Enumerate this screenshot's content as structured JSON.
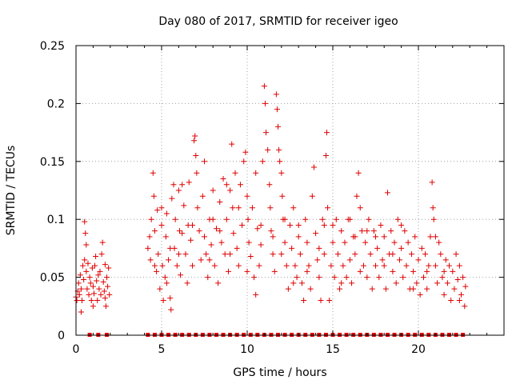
{
  "chart_data": {
    "type": "scatter",
    "title": "Day 080 of 2017, SRMTID for receiver igeo",
    "xlabel": "GPS time / hours",
    "ylabel": "SRMTID / TECUs",
    "xlim": [
      0,
      25
    ],
    "ylim": [
      0,
      0.25
    ],
    "xticks": [
      0,
      5,
      10,
      15,
      20
    ],
    "xtick_labels": [
      "0",
      "5",
      "10",
      "15",
      "20"
    ],
    "yticks": [
      0,
      0.05,
      0.1,
      0.15,
      0.2,
      0.25
    ],
    "ytick_labels": [
      "0",
      "0.05",
      "0.1",
      "0.15",
      "0.2",
      "0.25"
    ],
    "grid": true,
    "marker": "plus",
    "color": "#e00000",
    "series": [
      {
        "name": "SRMTID",
        "points": [
          [
            0.0,
            0.033
          ],
          [
            0.05,
            0.03
          ],
          [
            0.1,
            0.038
          ],
          [
            0.15,
            0.045
          ],
          [
            0.2,
            0.035
          ],
          [
            0.25,
            0.052
          ],
          [
            0.3,
            0.04
          ],
          [
            0.35,
            0.03
          ],
          [
            0.4,
            0.06
          ],
          [
            0.45,
            0.048
          ],
          [
            0.5,
            0.065
          ],
          [
            0.5,
            0.098
          ],
          [
            0.55,
            0.088
          ],
          [
            0.6,
            0.078
          ],
          [
            0.6,
            0.055
          ],
          [
            0.65,
            0.04
          ],
          [
            0.7,
            0.062
          ],
          [
            0.75,
            0.035
          ],
          [
            0.8,
            0.05
          ],
          [
            0.85,
            0.045
          ],
          [
            0.9,
            0.03
          ],
          [
            0.95,
            0.058
          ],
          [
            1.0,
            0.042
          ],
          [
            1.05,
            0.036
          ],
          [
            1.1,
            0.06
          ],
          [
            1.15,
            0.068
          ],
          [
            1.2,
            0.047
          ],
          [
            1.25,
            0.03
          ],
          [
            1.3,
            0.052
          ],
          [
            1.35,
            0.04
          ],
          [
            1.4,
            0.055
          ],
          [
            1.45,
            0.035
          ],
          [
            1.5,
            0.07
          ],
          [
            1.55,
            0.08
          ],
          [
            1.6,
            0.046
          ],
          [
            1.65,
            0.038
          ],
          [
            1.7,
            0.061
          ],
          [
            1.75,
            0.025
          ],
          [
            1.8,
            0.05
          ],
          [
            1.85,
            0.042
          ],
          [
            1.9,
            0.058
          ],
          [
            1.95,
            0.035
          ],
          [
            0.3,
            0.02
          ],
          [
            1.0,
            0.025
          ],
          [
            1.7,
            0.032
          ],
          [
            4.2,
            0.075
          ],
          [
            4.3,
            0.085
          ],
          [
            4.35,
            0.065
          ],
          [
            4.4,
            0.1
          ],
          [
            4.5,
            0.14
          ],
          [
            4.55,
            0.12
          ],
          [
            4.6,
            0.09
          ],
          [
            4.7,
            0.055
          ],
          [
            4.75,
            0.108
          ],
          [
            4.8,
            0.07
          ],
          [
            4.9,
            0.04
          ],
          [
            5.0,
            0.095
          ],
          [
            5.05,
            0.06
          ],
          [
            5.1,
            0.03
          ],
          [
            5.2,
            0.05
          ],
          [
            5.25,
            0.085
          ],
          [
            5.3,
            0.045
          ],
          [
            5.4,
            0.065
          ],
          [
            5.5,
            0.032
          ],
          [
            5.55,
            0.022
          ],
          [
            5.6,
            0.118
          ],
          [
            5.7,
            0.13
          ],
          [
            5.75,
            0.075
          ],
          [
            5.8,
            0.1
          ],
          [
            5.9,
            0.06
          ],
          [
            6.0,
            0.125
          ],
          [
            6.05,
            0.09
          ],
          [
            6.1,
            0.052
          ],
          [
            6.2,
            0.088
          ],
          [
            6.3,
            0.112
          ],
          [
            6.4,
            0.07
          ],
          [
            6.5,
            0.045
          ],
          [
            6.55,
            0.095
          ],
          [
            6.6,
            0.132
          ],
          [
            6.7,
            0.082
          ],
          [
            6.8,
            0.06
          ],
          [
            6.9,
            0.168
          ],
          [
            6.95,
            0.172
          ],
          [
            7.0,
            0.155
          ],
          [
            7.05,
            0.14
          ],
          [
            7.1,
            0.11
          ],
          [
            7.2,
            0.09
          ],
          [
            7.3,
            0.065
          ],
          [
            7.4,
            0.12
          ],
          [
            7.5,
            0.085
          ],
          [
            7.6,
            0.07
          ],
          [
            7.7,
            0.05
          ],
          [
            7.8,
            0.1
          ],
          [
            7.9,
            0.078
          ],
          [
            8.0,
            0.125
          ],
          [
            8.1,
            0.06
          ],
          [
            8.2,
            0.092
          ],
          [
            8.3,
            0.045
          ],
          [
            8.4,
            0.115
          ],
          [
            8.5,
            0.08
          ],
          [
            8.6,
            0.135
          ],
          [
            8.7,
            0.07
          ],
          [
            8.8,
            0.1
          ],
          [
            8.9,
            0.055
          ],
          [
            9.0,
            0.125
          ],
          [
            9.1,
            0.165
          ],
          [
            9.15,
            0.11
          ],
          [
            9.2,
            0.088
          ],
          [
            9.3,
            0.14
          ],
          [
            9.4,
            0.075
          ],
          [
            9.5,
            0.06
          ],
          [
            9.6,
            0.13
          ],
          [
            9.7,
            0.095
          ],
          [
            9.8,
            0.15
          ],
          [
            9.9,
            0.158
          ],
          [
            10.0,
            0.12
          ],
          [
            10.05,
            0.1
          ],
          [
            10.1,
            0.08
          ],
          [
            10.2,
            0.068
          ],
          [
            10.3,
            0.11
          ],
          [
            10.4,
            0.05
          ],
          [
            10.5,
            0.035
          ],
          [
            10.6,
            0.092
          ],
          [
            10.7,
            0.06
          ],
          [
            10.8,
            0.078
          ],
          [
            10.9,
            0.15
          ],
          [
            11.0,
            0.215
          ],
          [
            11.05,
            0.2
          ],
          [
            11.1,
            0.175
          ],
          [
            11.2,
            0.16
          ],
          [
            11.3,
            0.13
          ],
          [
            11.35,
            0.11
          ],
          [
            11.4,
            0.09
          ],
          [
            11.5,
            0.07
          ],
          [
            11.6,
            0.055
          ],
          [
            11.7,
            0.208
          ],
          [
            11.75,
            0.195
          ],
          [
            11.8,
            0.18
          ],
          [
            11.85,
            0.16
          ],
          [
            11.9,
            0.15
          ],
          [
            12.0,
            0.14
          ],
          [
            12.05,
            0.12
          ],
          [
            12.1,
            0.1
          ],
          [
            12.2,
            0.08
          ],
          [
            12.3,
            0.06
          ],
          [
            12.4,
            0.04
          ],
          [
            12.5,
            0.095
          ],
          [
            12.6,
            0.075
          ],
          [
            12.7,
            0.11
          ],
          [
            12.8,
            0.06
          ],
          [
            12.9,
            0.05
          ],
          [
            13.0,
            0.085
          ],
          [
            13.1,
            0.07
          ],
          [
            13.2,
            0.045
          ],
          [
            13.3,
            0.03
          ],
          [
            13.4,
            0.1
          ],
          [
            13.5,
            0.08
          ],
          [
            13.6,
            0.06
          ],
          [
            13.7,
            0.04
          ],
          [
            13.8,
            0.12
          ],
          [
            13.9,
            0.145
          ],
          [
            14.0,
            0.088
          ],
          [
            14.1,
            0.065
          ],
          [
            14.2,
            0.05
          ],
          [
            14.3,
            0.03
          ],
          [
            14.4,
            0.1
          ],
          [
            14.5,
            0.07
          ],
          [
            14.6,
            0.155
          ],
          [
            14.65,
            0.175
          ],
          [
            14.7,
            0.11
          ],
          [
            14.8,
            0.03
          ],
          [
            14.9,
            0.06
          ],
          [
            15.0,
            0.08
          ],
          [
            15.1,
            0.05
          ],
          [
            15.2,
            0.1
          ],
          [
            15.3,
            0.07
          ],
          [
            15.4,
            0.04
          ],
          [
            15.5,
            0.09
          ],
          [
            15.6,
            0.06
          ],
          [
            15.7,
            0.08
          ],
          [
            15.8,
            0.05
          ],
          [
            15.9,
            0.1
          ],
          [
            16.0,
            0.065
          ],
          [
            16.1,
            0.045
          ],
          [
            16.2,
            0.085
          ],
          [
            16.3,
            0.07
          ],
          [
            16.4,
            0.12
          ],
          [
            16.5,
            0.14
          ],
          [
            16.6,
            0.11
          ],
          [
            16.7,
            0.09
          ],
          [
            16.8,
            0.06
          ],
          [
            16.9,
            0.08
          ],
          [
            17.0,
            0.05
          ],
          [
            17.1,
            0.1
          ],
          [
            17.2,
            0.07
          ],
          [
            17.3,
            0.04
          ],
          [
            17.4,
            0.09
          ],
          [
            17.5,
            0.06
          ],
          [
            17.6,
            0.075
          ],
          [
            17.7,
            0.05
          ],
          [
            17.8,
            0.095
          ],
          [
            17.9,
            0.065
          ],
          [
            18.0,
            0.085
          ],
          [
            18.1,
            0.04
          ],
          [
            18.2,
            0.123
          ],
          [
            18.3,
            0.07
          ],
          [
            18.4,
            0.09
          ],
          [
            18.5,
            0.055
          ],
          [
            18.6,
            0.08
          ],
          [
            18.7,
            0.045
          ],
          [
            18.8,
            0.1
          ],
          [
            18.9,
            0.065
          ],
          [
            19.0,
            0.075
          ],
          [
            19.1,
            0.05
          ],
          [
            19.2,
            0.09
          ],
          [
            19.3,
            0.06
          ],
          [
            19.4,
            0.08
          ],
          [
            19.5,
            0.04
          ],
          [
            19.6,
            0.07
          ],
          [
            19.7,
            0.055
          ],
          [
            19.8,
            0.085
          ],
          [
            19.9,
            0.045
          ],
          [
            20.0,
            0.065
          ],
          [
            20.1,
            0.035
          ],
          [
            20.2,
            0.075
          ],
          [
            20.3,
            0.05
          ],
          [
            20.4,
            0.07
          ],
          [
            20.5,
            0.04
          ],
          [
            20.6,
            0.06
          ],
          [
            20.7,
            0.085
          ],
          [
            20.8,
            0.132
          ],
          [
            20.85,
            0.11
          ],
          [
            20.9,
            0.1
          ],
          [
            21.0,
            0.06
          ],
          [
            21.1,
            0.045
          ],
          [
            21.2,
            0.08
          ],
          [
            21.3,
            0.07
          ],
          [
            21.4,
            0.05
          ],
          [
            21.5,
            0.035
          ],
          [
            21.6,
            0.065
          ],
          [
            21.7,
            0.045
          ],
          [
            21.8,
            0.06
          ],
          [
            21.9,
            0.03
          ],
          [
            22.0,
            0.055
          ],
          [
            22.1,
            0.04
          ],
          [
            22.2,
            0.07
          ],
          [
            22.3,
            0.048
          ],
          [
            22.4,
            0.06
          ],
          [
            22.5,
            0.035
          ],
          [
            22.6,
            0.05
          ],
          [
            22.7,
            0.025
          ],
          [
            22.75,
            0.042
          ],
          [
            5.0,
            0.11
          ],
          [
            5.3,
            0.105
          ],
          [
            6.2,
            0.13
          ],
          [
            7.5,
            0.15
          ],
          [
            8.0,
            0.1
          ],
          [
            8.8,
            0.13
          ],
          [
            9.5,
            0.11
          ],
          [
            10.5,
            0.14
          ],
          [
            12.2,
            0.1
          ],
          [
            13.0,
            0.095
          ],
          [
            15.0,
            0.095
          ],
          [
            16.0,
            0.1
          ],
          [
            17.0,
            0.09
          ],
          [
            19.0,
            0.095
          ],
          [
            21.0,
            0.085
          ],
          [
            5.5,
            0.075
          ],
          [
            6.8,
            0.095
          ],
          [
            7.8,
            0.065
          ],
          [
            9.0,
            0.07
          ],
          [
            10.0,
            0.055
          ],
          [
            11.5,
            0.085
          ],
          [
            12.7,
            0.045
          ],
          [
            13.5,
            0.055
          ],
          [
            14.2,
            0.075
          ],
          [
            15.5,
            0.045
          ],
          [
            16.6,
            0.055
          ],
          [
            17.5,
            0.085
          ],
          [
            18.5,
            0.07
          ],
          [
            19.7,
            0.04
          ],
          [
            20.5,
            0.055
          ],
          [
            21.5,
            0.055
          ],
          [
            22.4,
            0.03
          ],
          [
            4.6,
            0.06
          ],
          [
            6.0,
            0.07
          ],
          [
            8.4,
            0.09
          ],
          [
            10.8,
            0.095
          ],
          [
            12.0,
            0.07
          ],
          [
            14.5,
            0.095
          ],
          [
            16.3,
            0.085
          ],
          [
            18.0,
            0.06
          ]
        ]
      }
    ],
    "baseline_markers_x": [
      0.8,
      1.3,
      1.8,
      4.2,
      4.6,
      5.0,
      5.4,
      5.8,
      6.2,
      6.6,
      7.0,
      7.4,
      7.8,
      8.2,
      8.6,
      9.0,
      9.4,
      9.8,
      10.2,
      10.6,
      11.0,
      11.4,
      11.8,
      12.2,
      12.6,
      13.0,
      13.4,
      13.8,
      14.2,
      14.6,
      15.0,
      15.4,
      15.8,
      16.2,
      16.6,
      17.0,
      17.4,
      17.8,
      18.2,
      18.6,
      19.0,
      19.4,
      19.8,
      20.2,
      20.6,
      21.0,
      21.4,
      21.8,
      22.2,
      22.6
    ]
  }
}
